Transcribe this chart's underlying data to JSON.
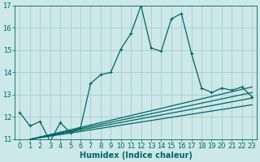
{
  "bg_color": "#cce8e8",
  "grid_color": "#aacccc",
  "line_color": "#006666",
  "xlim": [
    -0.5,
    23.5
  ],
  "ylim": [
    11,
    17
  ],
  "xlabel": "Humidex (Indice chaleur)",
  "xticks": [
    0,
    1,
    2,
    3,
    4,
    5,
    6,
    7,
    8,
    9,
    10,
    11,
    12,
    13,
    14,
    15,
    16,
    17,
    18,
    19,
    20,
    21,
    22,
    23
  ],
  "yticks": [
    11,
    12,
    13,
    14,
    15,
    16,
    17
  ],
  "main_line": [
    [
      0,
      12.2
    ],
    [
      1,
      11.6
    ],
    [
      2,
      11.8
    ],
    [
      3,
      10.9
    ],
    [
      4,
      11.75
    ],
    [
      5,
      11.3
    ],
    [
      6,
      11.5
    ],
    [
      7,
      13.5
    ],
    [
      8,
      13.9
    ],
    [
      9,
      14.0
    ],
    [
      10,
      15.05
    ],
    [
      11,
      15.75
    ],
    [
      12,
      17.0
    ],
    [
      13,
      15.1
    ],
    [
      14,
      14.95
    ],
    [
      15,
      16.4
    ],
    [
      16,
      16.65
    ],
    [
      17,
      14.85
    ],
    [
      18,
      13.3
    ],
    [
      19,
      13.1
    ],
    [
      20,
      13.3
    ],
    [
      21,
      13.2
    ],
    [
      22,
      13.35
    ],
    [
      23,
      12.9
    ]
  ],
  "trend_lines": [
    [
      [
        1,
        11.0
      ],
      [
        23,
        13.35
      ]
    ],
    [
      [
        1,
        11.0
      ],
      [
        23,
        13.1
      ]
    ],
    [
      [
        1,
        11.0
      ],
      [
        23,
        12.85
      ]
    ],
    [
      [
        1,
        11.0
      ],
      [
        23,
        12.55
      ]
    ]
  ],
  "xlabel_fontsize": 7,
  "tick_fontsize": 6,
  "line_width": 0.9,
  "marker": "+",
  "marker_size": 3.5,
  "figsize": [
    3.2,
    2.0
  ],
  "dpi": 100
}
